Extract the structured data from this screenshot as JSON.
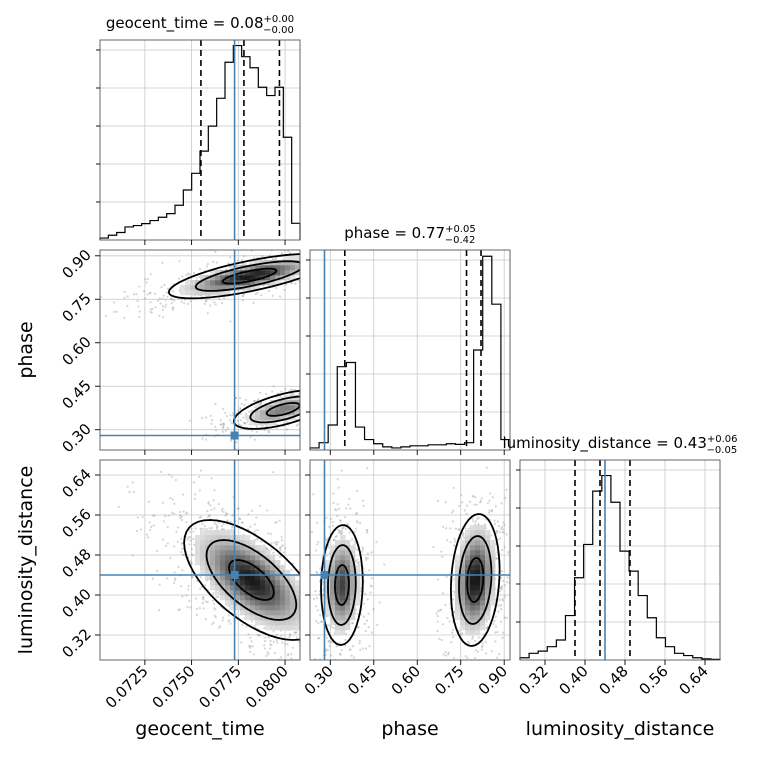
{
  "chart_data": {
    "type": "corner",
    "truth_color": "#4682b4",
    "parameters": [
      {
        "name": "geocent_time",
        "axis_label": "geocent_time",
        "title": {
          "base": "geocent_time = 0.08",
          "plus": "+0.00",
          "minus": "−0.00"
        },
        "range": [
          0.0701,
          0.0808
        ],
        "ticks": [
          0.0725,
          0.075,
          0.0775,
          0.08
        ],
        "tick_labels": [
          "0.0725",
          "0.0750",
          "0.0775",
          "0.0800"
        ],
        "truth": 0.0773,
        "quantiles": [
          0.0755,
          0.0778,
          0.0797
        ],
        "hist_bins": [
          0.7,
          1.7,
          2.7,
          4.7,
          5.2,
          5.9,
          7.0,
          8.2,
          9.5,
          12.5,
          18,
          24,
          32,
          41,
          51,
          64,
          70,
          66,
          62,
          55,
          52,
          55,
          37,
          6
        ],
        "hist_max": 72
      },
      {
        "name": "phase",
        "axis_label": "phase",
        "title": {
          "base": "phase = 0.77",
          "plus": "+0.05",
          "minus": "−0.42"
        },
        "range": [
          0.23,
          0.92
        ],
        "ticks": [
          0.3,
          0.45,
          0.6,
          0.75,
          0.9
        ],
        "tick_labels": [
          "0.30",
          "0.45",
          "0.60",
          "0.75",
          "0.90"
        ],
        "truth": 0.28,
        "quantiles": [
          0.35,
          0.77,
          0.82
        ],
        "hist_bins": [
          1.0,
          3.5,
          12.0,
          40.0,
          42.0,
          11.0,
          5.0,
          3.0,
          1.5,
          1.0,
          1.5,
          2.0,
          2.0,
          2.5,
          2.5,
          3.0,
          2.7,
          3.5,
          48.0,
          93.0,
          70.0,
          5.0
        ],
        "hist_max": 96
      },
      {
        "name": "luminosity_distance",
        "axis_label": "luminosity_distance",
        "title": {
          "base": "luminosity_distance = 0.43",
          "plus": "+0.06",
          "minus": "−0.05"
        },
        "range": [
          0.27,
          0.67
        ],
        "ticks": [
          0.32,
          0.4,
          0.48,
          0.56,
          0.64
        ],
        "tick_labels": [
          "0.32",
          "0.40",
          "0.48",
          "0.56",
          "0.64"
        ],
        "truth": 0.44,
        "quantiles": [
          0.38,
          0.43,
          0.49
        ],
        "hist_bins": [
          1,
          3,
          4,
          6,
          9,
          20,
          37,
          52,
          76,
          83,
          71,
          49,
          40,
          29,
          19,
          10,
          6,
          3,
          2,
          1,
          0.5,
          0.3
        ],
        "hist_max": 90
      }
    ],
    "pairs": [
      {
        "x": "geocent_time",
        "y": "phase",
        "modes": [
          {
            "cx": 0.0781,
            "cy": 0.83,
            "sx": 0.0018,
            "sy": 0.032,
            "rho": 0.72,
            "w": 0.6
          },
          {
            "cx": 0.0799,
            "cy": 0.37,
            "sx": 0.0011,
            "sy": 0.028,
            "rho": 0.6,
            "w": 0.4
          }
        ]
      },
      {
        "x": "geocent_time",
        "y": "luminosity_distance",
        "modes": [
          {
            "cx": 0.0782,
            "cy": 0.43,
            "sx": 0.0015,
            "sy": 0.05,
            "rho": -0.62,
            "w": 1.0
          }
        ]
      },
      {
        "x": "phase",
        "y": "luminosity_distance",
        "modes": [
          {
            "cx": 0.34,
            "cy": 0.42,
            "sx": 0.03,
            "sy": 0.05,
            "rho": 0.05,
            "w": 0.45
          },
          {
            "cx": 0.8,
            "cy": 0.43,
            "sx": 0.035,
            "sy": 0.055,
            "rho": 0.15,
            "w": 0.55
          }
        ]
      }
    ]
  }
}
